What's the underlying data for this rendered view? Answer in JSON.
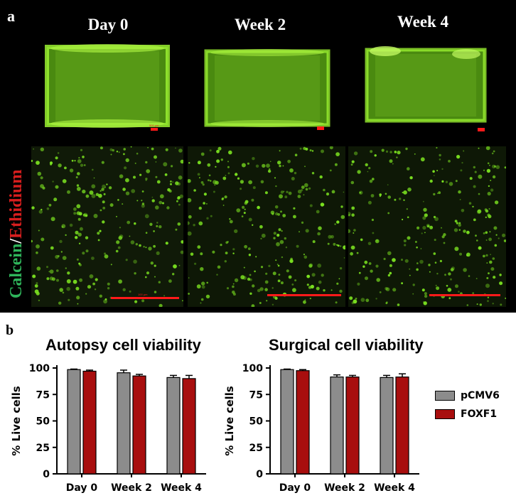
{
  "panel_a": {
    "label": "a",
    "columns": [
      "Day 0",
      "Week 2",
      "Week 4"
    ],
    "stain_label": {
      "calcein": "Calcein",
      "sep": "/",
      "ethidium": "Ethidium"
    },
    "scale_text_top": "500 µm",
    "scale_text_bottom": "100 µm",
    "colors": {
      "calcein": "#2fb45a",
      "ethidium": "#d81e1e",
      "cells": "#7ae020",
      "scalebar": "#ff1a1a"
    }
  },
  "panel_b": {
    "label": "b",
    "legend": [
      {
        "name": "pCMV6",
        "color": "#8c8c8c"
      },
      {
        "name": "FOXF1",
        "color": "#a80e0e"
      }
    ]
  },
  "chart_data": [
    {
      "type": "bar",
      "title": "Autopsy cell viability",
      "ylabel": "% Live cells",
      "xlabel": "",
      "categories": [
        "Day 0",
        "Week 2",
        "Week 4"
      ],
      "ylim": [
        0,
        100
      ],
      "yticks": [
        0,
        25,
        50,
        75,
        100
      ],
      "series": [
        {
          "name": "pCMV6",
          "values": [
            98.5,
            95.5,
            91
          ],
          "errors": [
            0.5,
            2.5,
            2
          ],
          "color": "#8c8c8c"
        },
        {
          "name": "FOXF1",
          "values": [
            97,
            92.5,
            90
          ],
          "errors": [
            1,
            1.5,
            3
          ],
          "color": "#a80e0e"
        }
      ]
    },
    {
      "type": "bar",
      "title": "Surgical cell viability",
      "ylabel": "% Live cells",
      "xlabel": "",
      "categories": [
        "Day 0",
        "Week 2",
        "Week 4"
      ],
      "ylim": [
        0,
        100
      ],
      "yticks": [
        0,
        25,
        50,
        75,
        100
      ],
      "series": [
        {
          "name": "pCMV6",
          "values": [
            98.5,
            91.5,
            91
          ],
          "errors": [
            0.5,
            2,
            2
          ],
          "color": "#8c8c8c"
        },
        {
          "name": "FOXF1",
          "values": [
            97.5,
            91.5,
            91.5
          ],
          "errors": [
            1,
            1.5,
            3
          ],
          "color": "#a80e0e"
        }
      ]
    }
  ]
}
